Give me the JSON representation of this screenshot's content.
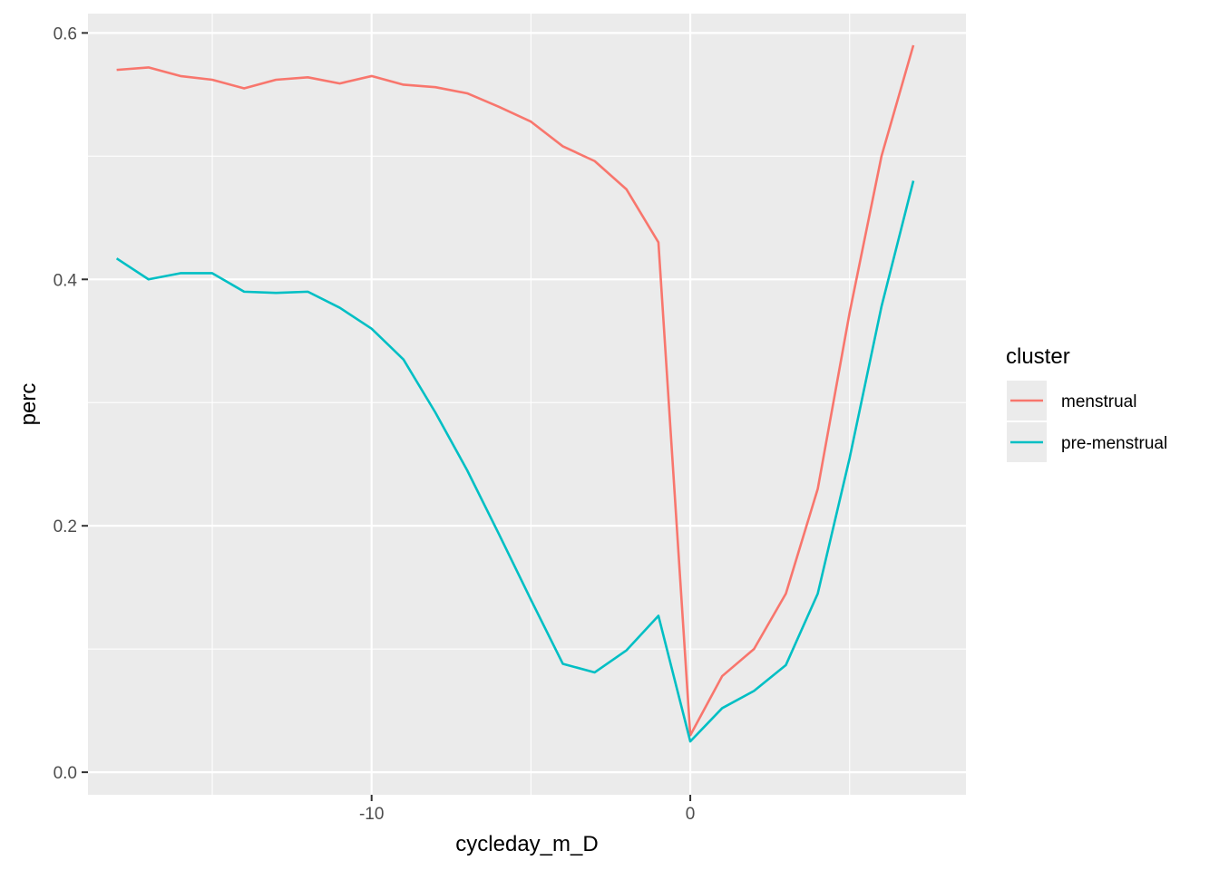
{
  "chart_data": {
    "type": "line",
    "xlabel": "cycleday_m_D",
    "ylabel": "perc",
    "xlim": [
      -18.9,
      8.65
    ],
    "ylim": [
      -0.0183,
      0.6157
    ],
    "x_ticks": [
      -10,
      0
    ],
    "x_minor_ticks": [
      -15,
      -5,
      5
    ],
    "y_ticks": [
      0.0,
      0.2,
      0.4,
      0.6
    ],
    "y_tick_labels": [
      "0.0",
      "0.2",
      "0.4",
      "0.6"
    ],
    "y_minor_ticks": [
      0.1,
      0.3,
      0.5
    ],
    "grid": true,
    "panel_background": "#ebebeb",
    "legend": {
      "title": "cluster",
      "position": "right"
    },
    "series": [
      {
        "name": "menstrual",
        "color": "#F8766D",
        "x": [
          -18,
          -17,
          -16,
          -15,
          -14,
          -13,
          -12,
          -11,
          -10,
          -9,
          -8,
          -7,
          -6,
          -5,
          -4,
          -3,
          -2,
          -1,
          0,
          1,
          2,
          3,
          4,
          5,
          6,
          7
        ],
        "y": [
          0.57,
          0.572,
          0.565,
          0.562,
          0.555,
          0.562,
          0.564,
          0.559,
          0.565,
          0.558,
          0.556,
          0.551,
          0.54,
          0.528,
          0.508,
          0.496,
          0.473,
          0.43,
          0.03,
          0.078,
          0.1,
          0.145,
          0.23,
          0.373,
          0.5,
          0.59
        ]
      },
      {
        "name": "pre-menstrual",
        "color": "#00BFC4",
        "x": [
          -18,
          -17,
          -16,
          -15,
          -14,
          -13,
          -12,
          -11,
          -10,
          -9,
          -8,
          -7,
          -6,
          -5,
          -4,
          -3,
          -2,
          -1,
          0,
          1,
          2,
          3,
          4,
          5,
          6,
          7
        ],
        "y": [
          0.417,
          0.4,
          0.405,
          0.405,
          0.39,
          0.389,
          0.39,
          0.377,
          0.36,
          0.335,
          0.292,
          0.245,
          0.193,
          0.14,
          0.088,
          0.081,
          0.099,
          0.127,
          0.025,
          0.052,
          0.066,
          0.087,
          0.145,
          0.255,
          0.378,
          0.48
        ]
      }
    ]
  }
}
